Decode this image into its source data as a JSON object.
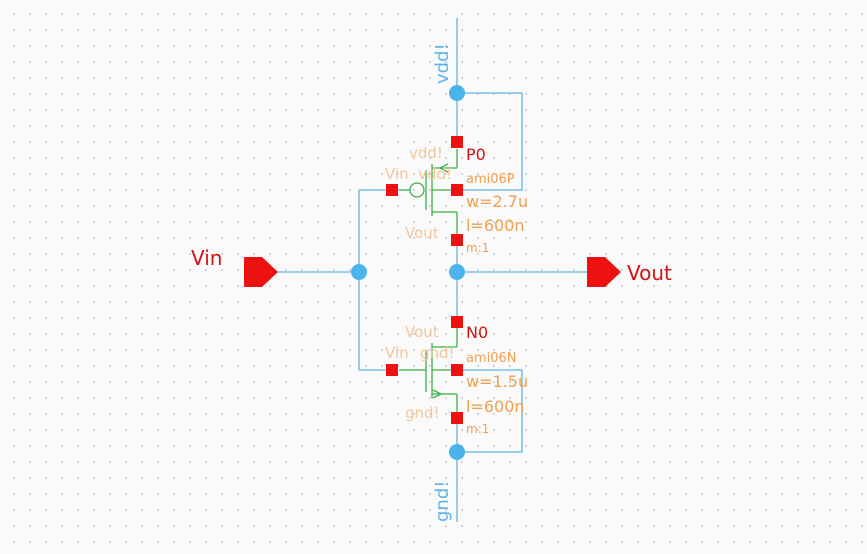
{
  "ports": {
    "input_label": "Vin",
    "output_label": "Vout"
  },
  "supply": {
    "vdd_label": "vdd!",
    "gnd_label": "gnd!"
  },
  "pmos": {
    "name": "P0",
    "model": "ami06P",
    "width": "w=2.7u",
    "length": "l=600n",
    "mult": "m:1",
    "terminal_vdd": "vdd!",
    "terminal_gate": "Vin",
    "terminal_bulk": "vdd!",
    "terminal_out": "Vout"
  },
  "nmos": {
    "name": "N0",
    "model": "ami06N",
    "width": "w=1.5u",
    "length": "l=600n",
    "mult": "m:1",
    "terminal_out": "Vout",
    "terminal_gate": "Vin",
    "terminal_bulk": "gnd!",
    "terminal_gnd": "gnd!"
  },
  "colors": {
    "wire": "#5fb4e6",
    "device": "#3cb04a",
    "pin": "#ee1111",
    "annotation": "#f0a050",
    "instance": "#d01414"
  }
}
